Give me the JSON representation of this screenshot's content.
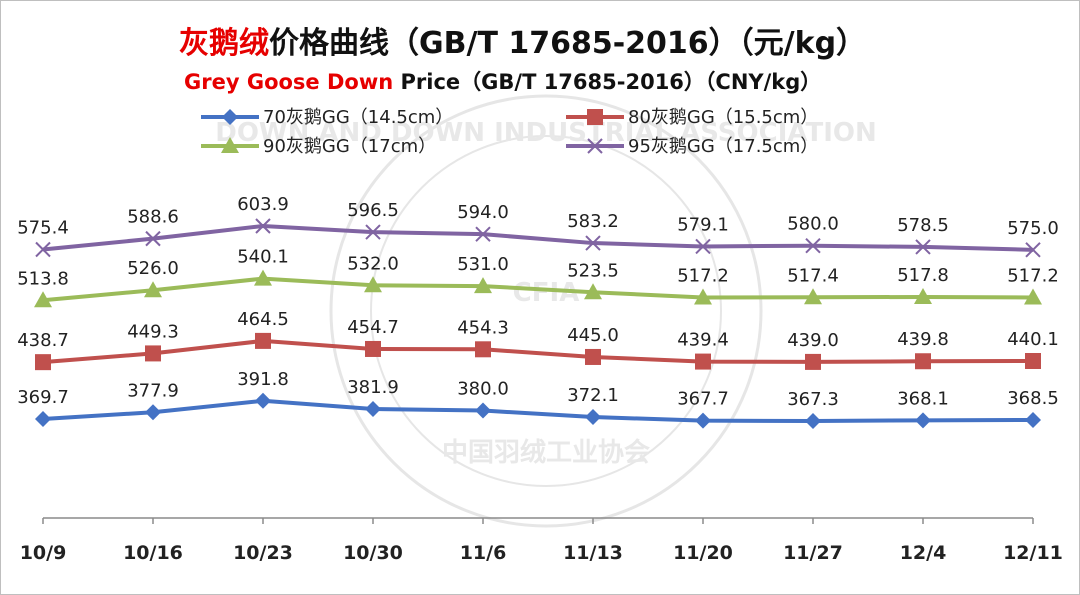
{
  "title": {
    "cn_red": "灰鹅绒",
    "cn_black": "价格曲线（GB/T 17685-2016）（元/kg）",
    "en_red": "Grey Goose Down",
    "en_black": " Price（GB/T 17685-2016）（CNY/kg）"
  },
  "watermark": {
    "center": "CFIA",
    "bottom": "中国羽绒工业协会",
    "top": "DOWN AND DOWN INDUSTRIAL ASSOCIATION"
  },
  "chart_data": {
    "type": "line",
    "categories": [
      "10/9",
      "10/16",
      "10/23",
      "10/30",
      "11/6",
      "11/13",
      "11/20",
      "11/27",
      "12/4",
      "12/11"
    ],
    "ylim": [
      320,
      640
    ],
    "grid": false,
    "legend_position": "top",
    "series": [
      {
        "name": "70灰鹅GG（14.5cm）",
        "color": "#4472C4",
        "marker": "diamond",
        "values": [
          369.7,
          377.9,
          391.8,
          381.9,
          380.0,
          372.1,
          367.7,
          367.3,
          368.1,
          368.5
        ],
        "labels": [
          "369.7",
          "377.9",
          "391.8",
          "381.9",
          "380.0",
          "372.1",
          "367.7",
          "367.3",
          "368.1",
          "368.5"
        ]
      },
      {
        "name": "80灰鹅GG（15.5cm）",
        "color": "#C0504D",
        "marker": "square",
        "values": [
          438.7,
          449.3,
          464.5,
          454.7,
          454.3,
          445.0,
          439.4,
          439.0,
          439.8,
          440.1
        ],
        "labels": [
          "438.7",
          "449.3",
          "464.5",
          "454.7",
          "454.3",
          "445.0",
          "439.4",
          "439.0",
          "439.8",
          "440.1"
        ]
      },
      {
        "name": "90灰鹅GG（17cm）",
        "color": "#9BBB59",
        "marker": "triangle",
        "values": [
          513.8,
          526.0,
          540.1,
          532.0,
          531.0,
          523.5,
          517.2,
          517.4,
          517.8,
          517.2
        ],
        "labels": [
          "513.8",
          "526.0",
          "540.1",
          "532.0",
          "531.0",
          "523.5",
          "517.2",
          "517.4",
          "517.8",
          "517.2"
        ]
      },
      {
        "name": "95灰鹅GG（17.5cm）",
        "color": "#8064A2",
        "marker": "x",
        "values": [
          575.4,
          588.6,
          603.9,
          596.5,
          594.0,
          583.2,
          579.1,
          580.0,
          578.5,
          575.0
        ],
        "labels": [
          "575.4",
          "588.6",
          "603.9",
          "596.5",
          "594.0",
          "583.2",
          "579.1",
          "580.0",
          "578.5",
          "575.0"
        ]
      }
    ]
  }
}
